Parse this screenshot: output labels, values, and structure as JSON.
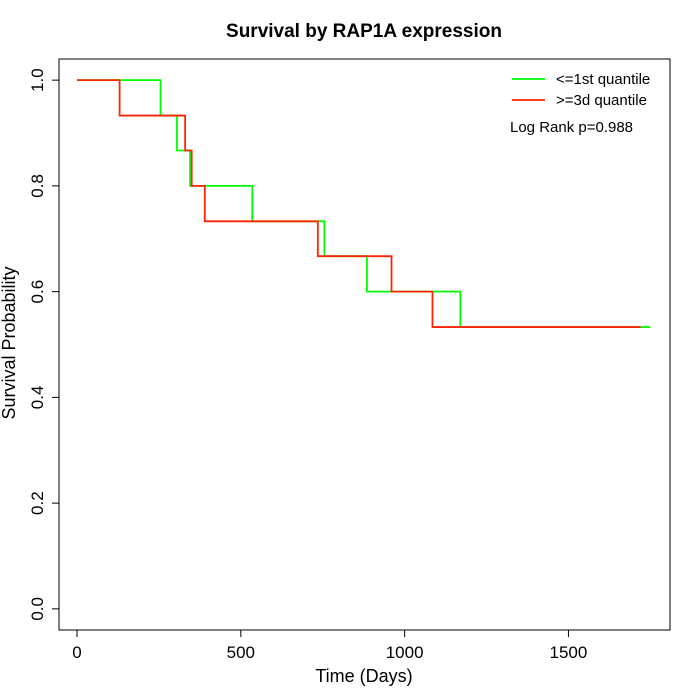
{
  "chart_data": {
    "type": "line",
    "title": "Survival by RAP1A expression",
    "xlabel": "Time (Days)",
    "ylabel": "Survival Probability",
    "xlim": [
      0,
      1800
    ],
    "ylim": [
      0,
      1.0
    ],
    "x_ticks": [
      "0",
      "500",
      "1000",
      "1500"
    ],
    "y_ticks": [
      "0.0",
      "0.2",
      "0.4",
      "0.6",
      "0.8",
      "1.0"
    ],
    "x_tick_values": [
      0,
      500,
      1000,
      1500
    ],
    "y_tick_values": [
      0,
      0.2,
      0.4,
      0.6,
      0.8,
      1.0
    ],
    "grid": false,
    "legend_position": "top-right",
    "annotation": "Log Rank p=0.988",
    "series": [
      {
        "name": "<=1st quantile",
        "color": "#00ff00",
        "step": true,
        "x": [
          0,
          255,
          305,
          345,
          535,
          755,
          885,
          1170,
          1750
        ],
        "y": [
          1.0,
          0.933,
          0.867,
          0.8,
          0.733,
          0.667,
          0.6,
          0.533,
          0.533
        ]
      },
      {
        "name": ">=3d quantile",
        "color": "#ff2400",
        "step": true,
        "x": [
          0,
          130,
          330,
          350,
          390,
          735,
          960,
          1085,
          1720
        ],
        "y": [
          1.0,
          0.933,
          0.867,
          0.8,
          0.733,
          0.667,
          0.6,
          0.533,
          0.533
        ]
      }
    ]
  }
}
